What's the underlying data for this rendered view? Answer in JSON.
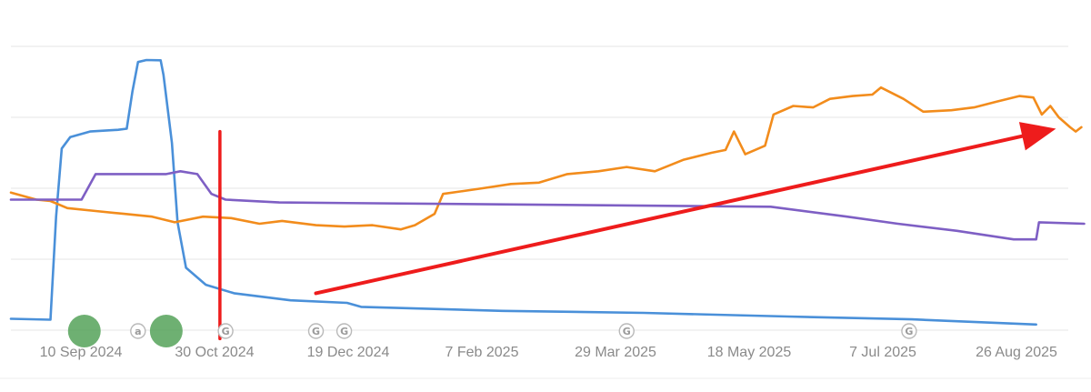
{
  "chart_data": {
    "type": "line",
    "title": "",
    "xlabel": "",
    "ylabel": "",
    "x_tick_labels": [
      "10 Sep 2024",
      "30 Oct 2024",
      "19 Dec 2024",
      "7 Feb 2025",
      "29 Mar 2025",
      "18 May 2025",
      "7 Jul 2025",
      "26 Aug 2025"
    ],
    "x_range": [
      "2024-09-05",
      "2025-09-15"
    ],
    "y_range": [
      0,
      100
    ],
    "y_gridlines": [
      0,
      25,
      50,
      75,
      100
    ],
    "grid": "horizontal",
    "legend": "none",
    "series": [
      {
        "color": "#4a90d9",
        "points": [
          [
            "2024-09-05",
            4
          ],
          [
            "2024-09-19",
            3.7
          ],
          [
            "2024-09-21",
            40
          ],
          [
            "2024-09-23",
            64
          ],
          [
            "2024-09-26",
            68
          ],
          [
            "2024-10-03",
            70
          ],
          [
            "2024-10-13",
            70.6
          ],
          [
            "2024-10-16",
            71
          ],
          [
            "2024-10-18",
            84
          ],
          [
            "2024-10-20",
            94.5
          ],
          [
            "2024-10-23",
            95.2
          ],
          [
            "2024-10-28",
            95.1
          ],
          [
            "2024-10-29",
            90
          ],
          [
            "2024-11-01",
            66
          ],
          [
            "2024-11-03",
            38
          ],
          [
            "2024-11-06",
            22
          ],
          [
            "2024-11-13",
            16
          ],
          [
            "2024-11-23",
            13
          ],
          [
            "2024-12-13",
            10.5
          ],
          [
            "2025-01-02",
            9.6
          ],
          [
            "2025-01-07",
            8.2
          ],
          [
            "2025-02-26",
            6.8
          ],
          [
            "2025-04-17",
            6.1
          ],
          [
            "2025-06-07",
            4.8
          ],
          [
            "2025-07-21",
            3.8
          ],
          [
            "2025-09-03",
            2
          ]
        ]
      },
      {
        "color": "#f28c1c",
        "points": [
          [
            "2024-09-05",
            48.5
          ],
          [
            "2024-09-14",
            46
          ],
          [
            "2024-09-19",
            45.5
          ],
          [
            "2024-09-25",
            43
          ],
          [
            "2024-10-05",
            42
          ],
          [
            "2024-10-15",
            41
          ],
          [
            "2024-10-25",
            40
          ],
          [
            "2024-11-02",
            38
          ],
          [
            "2024-11-12",
            40
          ],
          [
            "2024-11-22",
            39.5
          ],
          [
            "2024-12-02",
            37.5
          ],
          [
            "2024-12-10",
            38.5
          ],
          [
            "2024-12-22",
            37
          ],
          [
            "2025-01-01",
            36.5
          ],
          [
            "2025-01-11",
            37
          ],
          [
            "2025-01-21",
            35.5
          ],
          [
            "2025-01-26",
            37
          ],
          [
            "2025-02-02",
            41
          ],
          [
            "2025-02-05",
            48
          ],
          [
            "2025-02-12",
            49
          ],
          [
            "2025-02-19",
            50
          ],
          [
            "2025-03-01",
            51.5
          ],
          [
            "2025-03-11",
            52
          ],
          [
            "2025-03-21",
            55
          ],
          [
            "2025-04-01",
            56
          ],
          [
            "2025-04-11",
            57.5
          ],
          [
            "2025-04-21",
            56
          ],
          [
            "2025-05-01",
            60
          ],
          [
            "2025-05-11",
            62.5
          ],
          [
            "2025-05-16",
            63.5
          ],
          [
            "2025-05-19",
            70
          ],
          [
            "2025-05-23",
            62
          ],
          [
            "2025-05-30",
            65
          ],
          [
            "2025-06-02",
            76
          ],
          [
            "2025-06-09",
            79
          ],
          [
            "2025-06-16",
            78.5
          ],
          [
            "2025-06-22",
            81.5
          ],
          [
            "2025-06-30",
            82.5
          ],
          [
            "2025-07-07",
            83
          ],
          [
            "2025-07-10",
            85.5
          ],
          [
            "2025-07-18",
            81.5
          ],
          [
            "2025-07-25",
            77
          ],
          [
            "2025-08-04",
            77.5
          ],
          [
            "2025-08-12",
            78.5
          ],
          [
            "2025-08-20",
            80.5
          ],
          [
            "2025-08-28",
            82.5
          ],
          [
            "2025-09-02",
            82
          ],
          [
            "2025-09-05",
            76
          ],
          [
            "2025-09-08",
            79
          ],
          [
            "2025-09-11",
            75
          ],
          [
            "2025-09-15",
            71.5
          ],
          [
            "2025-09-17",
            70
          ],
          [
            "2025-09-19",
            71.5
          ]
        ]
      },
      {
        "color": "#7e5fc4",
        "points": [
          [
            "2024-09-05",
            46
          ],
          [
            "2024-09-30",
            46
          ],
          [
            "2024-10-05",
            55
          ],
          [
            "2024-10-30",
            55
          ],
          [
            "2024-11-04",
            56
          ],
          [
            "2024-11-10",
            55
          ],
          [
            "2024-11-15",
            48
          ],
          [
            "2024-11-20",
            46
          ],
          [
            "2024-12-09",
            45
          ],
          [
            "2025-06-01",
            43.5
          ],
          [
            "2025-06-28",
            40
          ],
          [
            "2025-07-16",
            37.5
          ],
          [
            "2025-08-06",
            35
          ],
          [
            "2025-08-26",
            32
          ],
          [
            "2025-09-03",
            32
          ],
          [
            "2025-09-04",
            38
          ],
          [
            "2025-09-20",
            37.5
          ]
        ]
      }
    ],
    "annotations": [
      {
        "type": "icon",
        "letter": "a",
        "date": "2024-10-20"
      },
      {
        "type": "icon",
        "letter": "G",
        "date": "2024-11-20"
      },
      {
        "type": "icon",
        "letter": "G",
        "date": "2024-12-22"
      },
      {
        "type": "icon",
        "letter": "G",
        "date": "2025-01-01"
      },
      {
        "type": "icon",
        "letter": "G",
        "date": "2025-04-11"
      },
      {
        "type": "icon",
        "letter": "G",
        "date": "2025-07-20"
      },
      {
        "type": "marker",
        "color": "#5aa55e",
        "date": "2024-10-01"
      },
      {
        "type": "marker",
        "color": "#5aa55e",
        "date": "2024-10-30"
      }
    ],
    "overlays": [
      {
        "type": "line",
        "color": "#ee1c1c",
        "from": [
          "2024-11-18",
          70
        ],
        "to": [
          "2024-11-18",
          -3
        ]
      },
      {
        "type": "arrow",
        "color": "#ee1c1c",
        "from": [
          "2024-12-22",
          13
        ],
        "to": [
          "2025-09-10",
          71
        ]
      }
    ]
  }
}
